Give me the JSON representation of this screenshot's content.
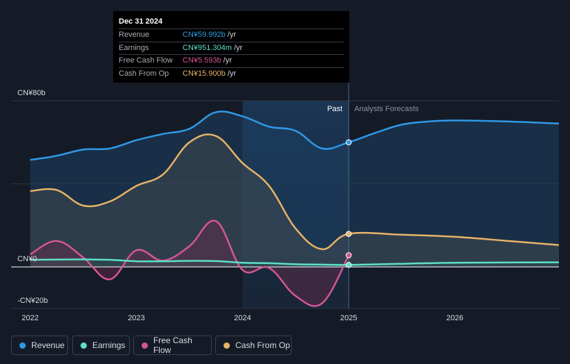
{
  "tooltip": {
    "date": "Dec 31 2024",
    "rows": [
      {
        "label": "Revenue",
        "value": "CN¥59.992b",
        "unit": "/yr",
        "color": "#2f9ae8"
      },
      {
        "label": "Earnings",
        "value": "CN¥951.304m",
        "unit": "/yr",
        "color": "#5ee0c8"
      },
      {
        "label": "Free Cash Flow",
        "value": "CN¥5.593b",
        "unit": "/yr",
        "color": "#d45793"
      },
      {
        "label": "Cash From Op",
        "value": "CN¥15.900b",
        "unit": "/yr",
        "color": "#e8b468"
      }
    ]
  },
  "legend": [
    {
      "label": "Revenue",
      "color": "#2f9ae8"
    },
    {
      "label": "Earnings",
      "color": "#5ee0c8"
    },
    {
      "label": "Free Cash Flow",
      "color": "#d45793"
    },
    {
      "label": "Cash From Op",
      "color": "#e8b468"
    }
  ],
  "chart_data": {
    "type": "line",
    "title": "",
    "y_unit": "CN¥ billions",
    "ylim": [
      -20,
      80
    ],
    "xlim": [
      2021.82,
      2026.98
    ],
    "y_tick_labels": [
      {
        "value": 80,
        "label": "CN¥80b"
      },
      {
        "value": 0,
        "label": "CN¥0"
      },
      {
        "value": -20,
        "label": "-CN¥20b"
      }
    ],
    "x_tick_labels": [
      {
        "value": 2022,
        "label": "2022"
      },
      {
        "value": 2023,
        "label": "2023"
      },
      {
        "value": 2024,
        "label": "2024"
      },
      {
        "value": 2025,
        "label": "2025"
      },
      {
        "value": 2026,
        "label": "2026"
      }
    ],
    "past_label": "Past",
    "forecast_label": "Analysts Forecasts",
    "divider_x": 2025.0,
    "highlight_start_x": 2024.0,
    "series": [
      {
        "name": "Revenue",
        "color": "#2f9ae8",
        "points": [
          [
            2022.0,
            51.5
          ],
          [
            2022.25,
            53.5
          ],
          [
            2022.5,
            56.5
          ],
          [
            2022.75,
            57.0
          ],
          [
            2023.0,
            61.0
          ],
          [
            2023.25,
            64.0
          ],
          [
            2023.5,
            66.5
          ],
          [
            2023.75,
            74.5
          ],
          [
            2024.0,
            72.5
          ],
          [
            2024.25,
            67.5
          ],
          [
            2024.5,
            65.5
          ],
          [
            2024.75,
            57.0
          ],
          [
            2025.0,
            60.0
          ],
          [
            2025.25,
            64.5
          ],
          [
            2025.5,
            68.5
          ],
          [
            2025.75,
            70.0
          ],
          [
            2026.0,
            70.5
          ],
          [
            2026.5,
            70.0
          ],
          [
            2026.98,
            69.0
          ]
        ]
      },
      {
        "name": "Earnings",
        "color": "#5ee0c8",
        "points": [
          [
            2022.0,
            3.4
          ],
          [
            2022.5,
            3.6
          ],
          [
            2022.75,
            3.4
          ],
          [
            2023.0,
            2.7
          ],
          [
            2023.25,
            2.7
          ],
          [
            2023.5,
            2.9
          ],
          [
            2023.75,
            2.8
          ],
          [
            2024.0,
            2.0
          ],
          [
            2024.25,
            1.8
          ],
          [
            2024.5,
            1.3
          ],
          [
            2024.75,
            1.1
          ],
          [
            2025.0,
            0.95
          ],
          [
            2025.5,
            1.5
          ],
          [
            2026.0,
            2.0
          ],
          [
            2026.98,
            2.2
          ]
        ]
      },
      {
        "name": "Free Cash Flow",
        "color": "#d45793",
        "points": [
          [
            2022.0,
            6.0
          ],
          [
            2022.25,
            12.5
          ],
          [
            2022.5,
            4.5
          ],
          [
            2022.75,
            -6.0
          ],
          [
            2023.0,
            8.0
          ],
          [
            2023.25,
            3.0
          ],
          [
            2023.5,
            10.0
          ],
          [
            2023.75,
            22.0
          ],
          [
            2024.0,
            -1.5
          ],
          [
            2024.25,
            -0.5
          ],
          [
            2024.5,
            -14.0
          ],
          [
            2024.75,
            -17.5
          ],
          [
            2025.0,
            5.6
          ]
        ]
      },
      {
        "name": "Cash From Op",
        "color": "#e8b468",
        "points": [
          [
            2022.0,
            36.5
          ],
          [
            2022.25,
            37.0
          ],
          [
            2022.5,
            29.5
          ],
          [
            2022.75,
            31.5
          ],
          [
            2023.0,
            39.0
          ],
          [
            2023.25,
            44.5
          ],
          [
            2023.5,
            60.0
          ],
          [
            2023.75,
            63.0
          ],
          [
            2024.0,
            50.0
          ],
          [
            2024.25,
            39.0
          ],
          [
            2024.5,
            18.5
          ],
          [
            2024.75,
            8.5
          ],
          [
            2025.0,
            15.9
          ],
          [
            2025.5,
            15.5
          ],
          [
            2026.0,
            14.5
          ],
          [
            2026.5,
            12.5
          ],
          [
            2026.98,
            10.5
          ]
        ]
      }
    ]
  }
}
